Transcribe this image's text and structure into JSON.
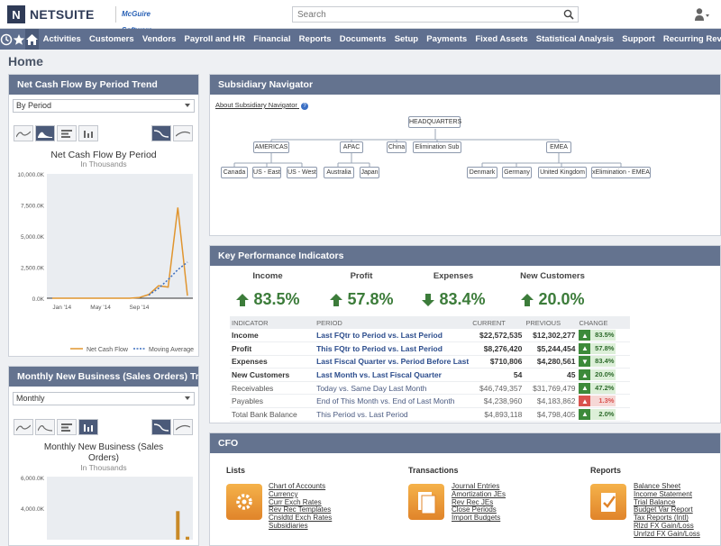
{
  "header": {
    "logo_mark": "N",
    "logo_text": "NETSUITE",
    "partner_logo": "McGuire Software",
    "search_placeholder": "Search"
  },
  "nav": {
    "items": [
      "Activities",
      "Customers",
      "Vendors",
      "Payroll and HR",
      "Financial",
      "Reports",
      "Documents",
      "Setup",
      "Payments",
      "Fixed Assets",
      "Statistical Analysis",
      "Support",
      "Recurring Revenue"
    ]
  },
  "page": {
    "title": "Home"
  },
  "cashflow": {
    "title": "Net Cash Flow By Period Trend",
    "select_value": "By Period",
    "chart_title": "Net Cash Flow By Period",
    "chart_subtitle": "In Thousands",
    "legend_1": "Net Cash Flow",
    "legend_2": "Moving Average"
  },
  "monthly": {
    "title": "Monthly New Business (Sales Orders) Trend",
    "select_value": "Monthly",
    "chart_title_1": "Monthly New Business (Sales",
    "chart_title_2": "Orders)",
    "chart_subtitle": "In Thousands"
  },
  "chart_data": [
    {
      "type": "line",
      "title": "Net Cash Flow By Period",
      "subtitle": "In Thousands",
      "x_tick_labels": [
        "Jan '14",
        "May '14",
        "Sep '14"
      ],
      "y_tick_labels": [
        "10,000.0K",
        "7,500.0K",
        "5,000.0K",
        "2,500.0K",
        "0.0K"
      ],
      "ylim": [
        0,
        10000
      ],
      "series": [
        {
          "name": "Net Cash Flow",
          "color": "#e0952f",
          "values": [
            0,
            0,
            0,
            0,
            0,
            0,
            0,
            0,
            0,
            50,
            300,
            1000,
            900,
            7300,
            200
          ]
        },
        {
          "name": "Moving Average",
          "color": "#3d6fbf",
          "values": [
            null,
            null,
            null,
            null,
            null,
            null,
            null,
            null,
            null,
            null,
            250,
            800,
            1500,
            2300,
            2900
          ]
        }
      ],
      "legend_position": "bottom",
      "grid": false
    },
    {
      "type": "bar",
      "title": "Monthly New Business (Sales Orders)",
      "subtitle": "In Thousands",
      "y_tick_labels": [
        "6,000.0K",
        "4,000.0K"
      ],
      "ylim": [
        0,
        6000
      ],
      "values": [
        0,
        0,
        0,
        0,
        0,
        0,
        0,
        0,
        0,
        0,
        0,
        0,
        0,
        3700,
        2000
      ]
    }
  ],
  "subsidiary": {
    "title": "Subsidiary Navigator",
    "about_link": "About Subsidiary Navigator",
    "nodes": {
      "hq": "HEADQUARTERS",
      "americas": "AMERICAS",
      "apac": "APAC",
      "china": "China",
      "elim": "Elimination Sub",
      "emea": "EMEA",
      "canada": "Canada",
      "useast": "US - East",
      "uswest": "US - West",
      "australia": "Australia",
      "japan": "Japan",
      "denmark": "Denmark",
      "germany": "Germany",
      "uk": "United Kingdom",
      "xelim": "xElimination - EMEA"
    }
  },
  "kpi": {
    "title": "Key Performance Indicators",
    "summary": [
      {
        "name": "Income",
        "value": "83.5%",
        "dir": "up"
      },
      {
        "name": "Profit",
        "value": "57.8%",
        "dir": "up"
      },
      {
        "name": "Expenses",
        "value": "83.4%",
        "dir": "down"
      },
      {
        "name": "New Customers",
        "value": "20.0%",
        "dir": "up"
      }
    ],
    "headers": {
      "indicator": "INDICATOR",
      "period": "PERIOD",
      "current": "CURRENT",
      "previous": "PREVIOUS",
      "change": "CHANGE"
    },
    "rows": [
      {
        "indicator": "Income",
        "period": "Last FQtr to Period vs. Last Period",
        "current": "$22,572,535",
        "previous": "$12,302,277",
        "change": "83.5%",
        "dir": "up",
        "emph": true
      },
      {
        "indicator": "Profit",
        "period": "This FQtr to Period vs. Last Period",
        "current": "$8,276,420",
        "previous": "$5,244,454",
        "change": "57.8%",
        "dir": "up",
        "emph": true
      },
      {
        "indicator": "Expenses",
        "period": "Last Fiscal Quarter vs. Period Before Last",
        "current": "$710,806",
        "previous": "$4,280,561",
        "change": "83.4%",
        "dir": "down",
        "emph": true
      },
      {
        "indicator": "New Customers",
        "period": "Last Month vs. Last Fiscal Quarter",
        "current": "54",
        "previous": "45",
        "change": "20.0%",
        "dir": "up",
        "emph": true
      },
      {
        "indicator": "Receivables",
        "period": "Today vs. Same Day Last Month",
        "current": "$46,749,357",
        "previous": "$31,769,479",
        "change": "47.2%",
        "dir": "up",
        "emph": false
      },
      {
        "indicator": "Payables",
        "period": "End of This Month vs. End of Last Month",
        "current": "$4,238,960",
        "previous": "$4,183,862",
        "change": "1.3%",
        "dir": "up-red",
        "emph": false
      },
      {
        "indicator": "Total Bank Balance",
        "period": "This Period vs. Last Period",
        "current": "$4,893,118",
        "previous": "$4,798,405",
        "change": "2.0%",
        "dir": "up",
        "emph": false
      }
    ],
    "colors": {
      "green": "#3c8a3a",
      "green_bg": "#dcefd8",
      "red": "#d9534f",
      "red_bg": "#f6d8d6"
    }
  },
  "cfo": {
    "title": "CFO",
    "lists_title": "Lists",
    "lists": [
      "Chart of Accounts",
      "Currency",
      "Curr Exch Rates",
      "Rev Rec Templates",
      "Cnsldtd Exch Rates",
      "Subsidiaries"
    ],
    "transactions_title": "Transactions",
    "transactions": [
      "Journal Entries",
      "Amortization JEs",
      "Rev Rec JEs",
      "Close Periods",
      "Import Budgets"
    ],
    "reports_title": "Reports",
    "reports": [
      "Balance Sheet",
      "Income Statement",
      "Trial Balance",
      "Budget Var Report",
      "Tax Reports (Intl)",
      "Rlzd FX Gain/Loss",
      "Unrlzd FX Gain/Loss"
    ]
  }
}
